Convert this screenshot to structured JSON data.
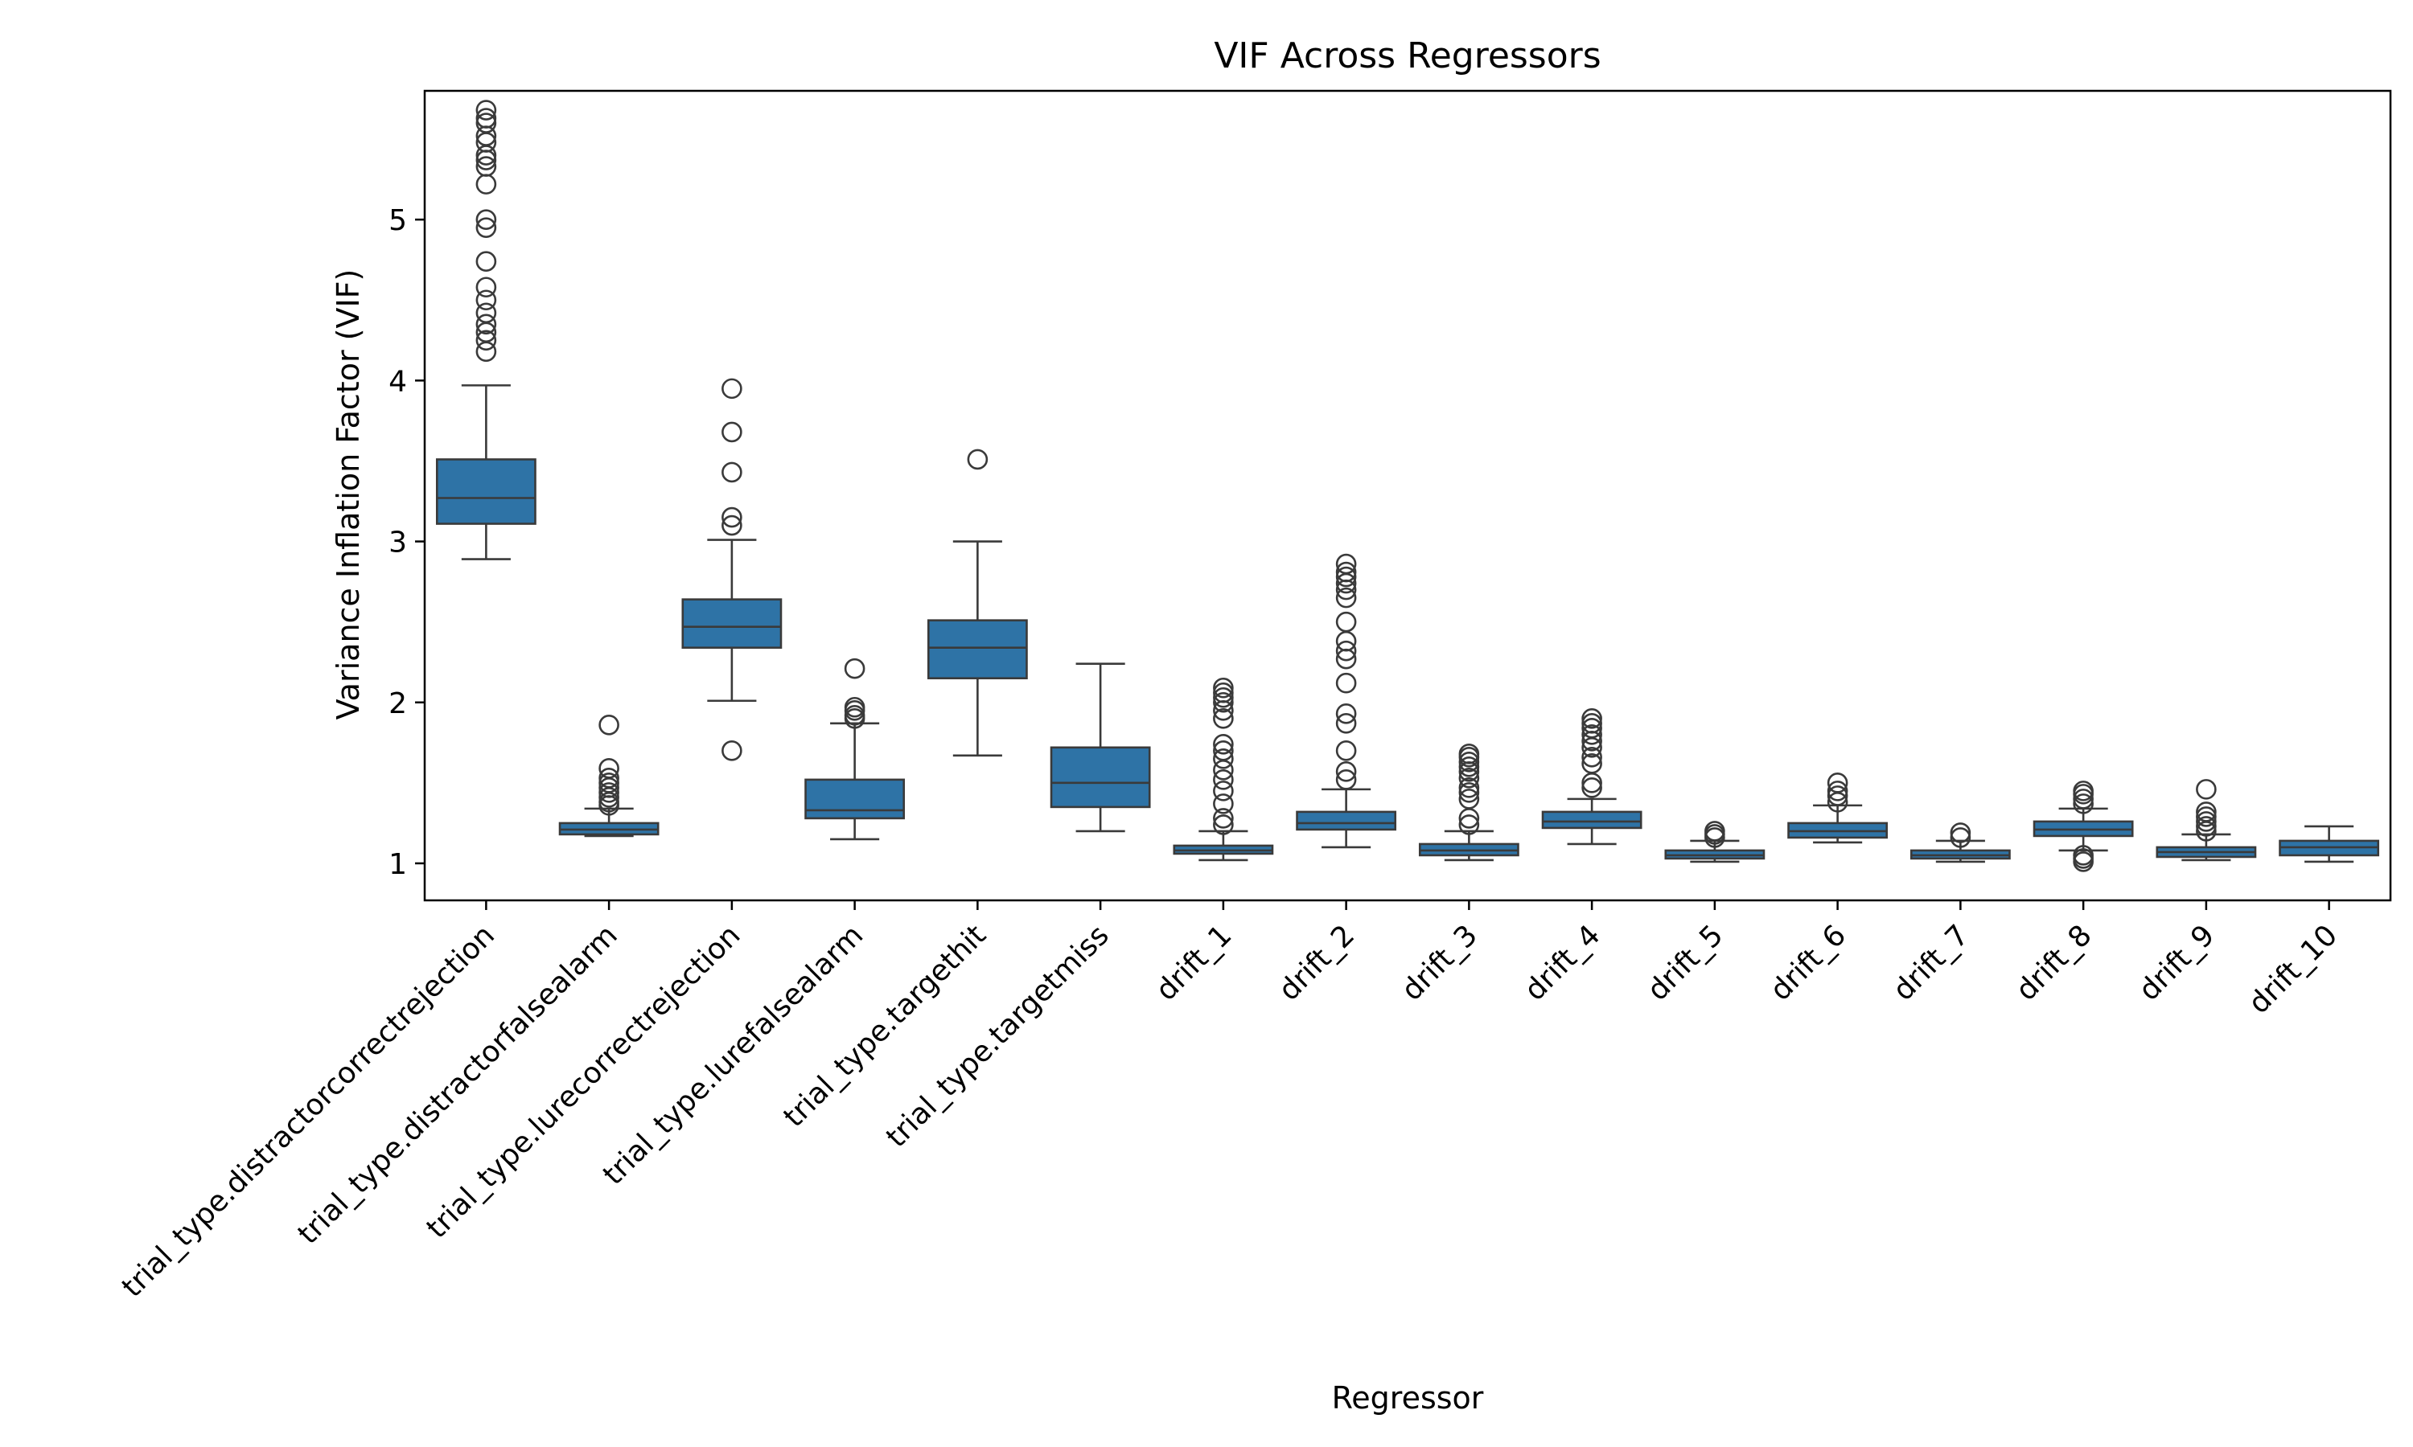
{
  "chart_data": {
    "type": "box",
    "title": "VIF Across Regressors",
    "xlabel": "Regressor",
    "ylabel": "Variance Inflation Factor (VIF)",
    "ylim": [
      0.77,
      5.8
    ],
    "yticks": [
      1,
      2,
      3,
      4,
      5
    ],
    "grid": false,
    "box_color": "#2e73a6",
    "line_color": "#3a3a3a",
    "categories": [
      "trial_type.distractorcorrectrejection",
      "trial_type.distractorfalsealarm",
      "trial_type.lurecorrectrejection",
      "trial_type.lurefalsealarm",
      "trial_type.targethit",
      "trial_type.targetmiss",
      "drift_1",
      "drift_2",
      "drift_3",
      "drift_4",
      "drift_5",
      "drift_6",
      "drift_7",
      "drift_8",
      "drift_9",
      "drift_10"
    ],
    "boxes": [
      {
        "whisker_low": 2.89,
        "q1": 3.11,
        "median": 3.27,
        "q3": 3.51,
        "whisker_high": 3.97,
        "outliers": [
          4.18,
          4.25,
          4.3,
          4.35,
          4.42,
          4.5,
          4.58,
          4.74,
          4.95,
          5.0,
          5.22,
          5.33,
          5.37,
          5.4,
          5.48,
          5.52,
          5.6,
          5.63,
          5.68
        ]
      },
      {
        "whisker_low": 1.17,
        "q1": 1.18,
        "median": 1.21,
        "q3": 1.25,
        "whisker_high": 1.34,
        "outliers": [
          1.36,
          1.38,
          1.41,
          1.44,
          1.47,
          1.5,
          1.53,
          1.59,
          1.86
        ]
      },
      {
        "whisker_low": 2.01,
        "q1": 2.34,
        "median": 2.47,
        "q3": 2.64,
        "whisker_high": 3.01,
        "outliers": [
          1.7,
          3.1,
          3.15,
          3.43,
          3.68,
          3.95
        ]
      },
      {
        "whisker_low": 1.15,
        "q1": 1.28,
        "median": 1.33,
        "q3": 1.52,
        "whisker_high": 1.87,
        "outliers": [
          1.9,
          1.92,
          1.95,
          1.97,
          2.21
        ]
      },
      {
        "whisker_low": 1.67,
        "q1": 2.15,
        "median": 2.34,
        "q3": 2.51,
        "whisker_high": 3.0,
        "outliers": [
          3.51
        ]
      },
      {
        "whisker_low": 1.2,
        "q1": 1.35,
        "median": 1.5,
        "q3": 1.72,
        "whisker_high": 2.24,
        "outliers": []
      },
      {
        "whisker_low": 1.02,
        "q1": 1.06,
        "median": 1.08,
        "q3": 1.11,
        "whisker_high": 1.2,
        "outliers": [
          1.24,
          1.28,
          1.37,
          1.45,
          1.52,
          1.58,
          1.65,
          1.7,
          1.74,
          1.9,
          1.95,
          2.0,
          2.03,
          2.06,
          2.09
        ]
      },
      {
        "whisker_low": 1.1,
        "q1": 1.21,
        "median": 1.25,
        "q3": 1.32,
        "whisker_high": 1.46,
        "outliers": [
          1.52,
          1.57,
          1.7,
          1.87,
          1.93,
          2.12,
          2.27,
          2.32,
          2.38,
          2.5,
          2.65,
          2.7,
          2.74,
          2.78,
          2.81,
          2.86
        ]
      },
      {
        "whisker_low": 1.02,
        "q1": 1.05,
        "median": 1.08,
        "q3": 1.12,
        "whisker_high": 1.2,
        "outliers": [
          1.24,
          1.28,
          1.4,
          1.44,
          1.47,
          1.53,
          1.57,
          1.6,
          1.63,
          1.66,
          1.68
        ]
      },
      {
        "whisker_low": 1.12,
        "q1": 1.22,
        "median": 1.26,
        "q3": 1.32,
        "whisker_high": 1.4,
        "outliers": [
          1.47,
          1.5,
          1.62,
          1.66,
          1.72,
          1.76,
          1.8,
          1.84,
          1.87,
          1.9
        ]
      },
      {
        "whisker_low": 1.01,
        "q1": 1.03,
        "median": 1.05,
        "q3": 1.08,
        "whisker_high": 1.14,
        "outliers": [
          1.16,
          1.18,
          1.2
        ]
      },
      {
        "whisker_low": 1.13,
        "q1": 1.16,
        "median": 1.2,
        "q3": 1.25,
        "whisker_high": 1.36,
        "outliers": [
          1.38,
          1.42,
          1.45,
          1.5
        ]
      },
      {
        "whisker_low": 1.01,
        "q1": 1.03,
        "median": 1.05,
        "q3": 1.08,
        "whisker_high": 1.14,
        "outliers": [
          1.16,
          1.19
        ]
      },
      {
        "whisker_low": 1.08,
        "q1": 1.17,
        "median": 1.21,
        "q3": 1.26,
        "whisker_high": 1.34,
        "outliers": [
          1.01,
          1.03,
          1.05,
          1.37,
          1.4,
          1.43,
          1.45
        ]
      },
      {
        "whisker_low": 1.02,
        "q1": 1.04,
        "median": 1.07,
        "q3": 1.1,
        "whisker_high": 1.18,
        "outliers": [
          1.2,
          1.23,
          1.26,
          1.29,
          1.32,
          1.46
        ]
      },
      {
        "whisker_low": 1.01,
        "q1": 1.05,
        "median": 1.1,
        "q3": 1.14,
        "whisker_high": 1.23,
        "outliers": []
      }
    ]
  }
}
